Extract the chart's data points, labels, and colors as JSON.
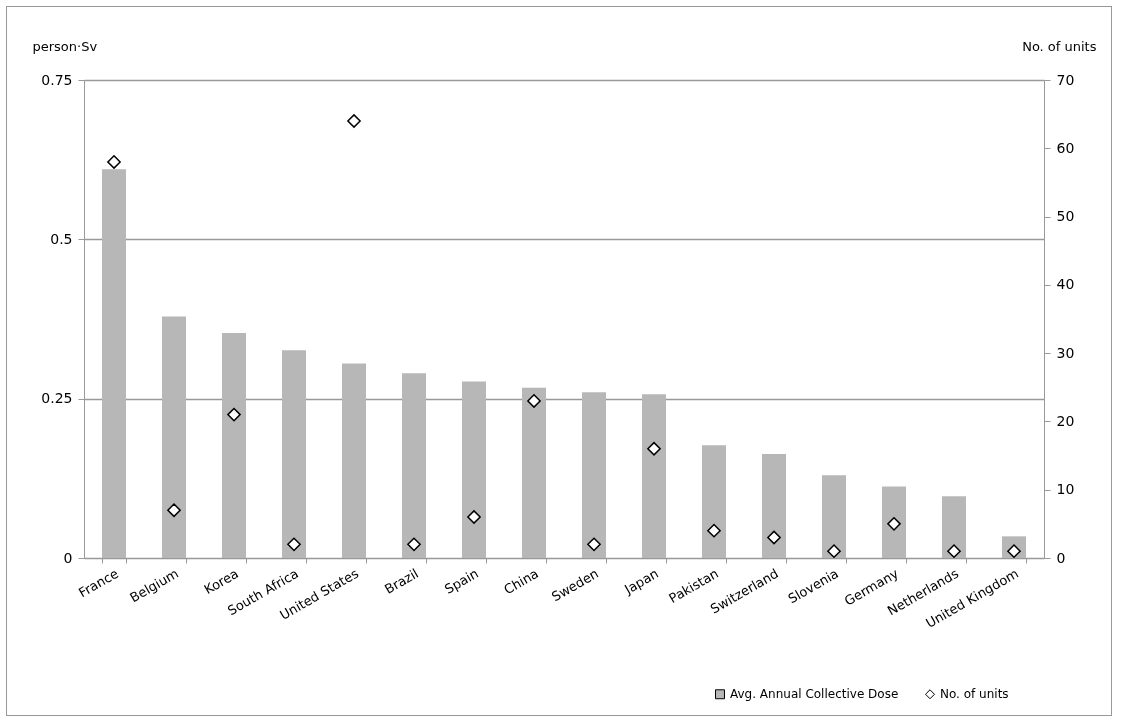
{
  "chart_data": {
    "type": "bar",
    "ylabel": "person·Sv",
    "y2label": "No. of units",
    "categories": [
      "France",
      "Belgium",
      "Korea",
      "South Africa",
      "United States",
      "Brazil",
      "Spain",
      "China",
      "Sweden",
      "Japan",
      "Pakistan",
      "Switzerland",
      "Slovenia",
      "Germany",
      "Netherlands",
      "United Kingdom"
    ],
    "series": [
      {
        "name": "Avg. Annual Collective Dose",
        "color": "#b7b7b7",
        "values": [
          0.61,
          0.379,
          0.353,
          0.326,
          0.305,
          0.29,
          0.277,
          0.267,
          0.26,
          0.257,
          0.177,
          0.163,
          0.13,
          0.112,
          0.097,
          0.034
        ]
      },
      {
        "name": "No. of units",
        "type": "scatter",
        "axis": "y2",
        "marker": "diamond",
        "color": "#ffffff",
        "values": [
          58,
          7,
          21,
          2,
          64,
          2,
          6,
          23,
          2,
          16,
          4,
          3,
          1,
          5,
          1,
          1
        ]
      }
    ],
    "ylim": [
      0,
      0.75
    ],
    "yticks": [
      0,
      0.25,
      0.5,
      0.75
    ],
    "y2lim": [
      0,
      70
    ],
    "y2ticks": [
      0,
      10,
      20,
      30,
      40,
      50,
      60,
      70
    ],
    "grid": "y",
    "legend": "bottom right"
  }
}
